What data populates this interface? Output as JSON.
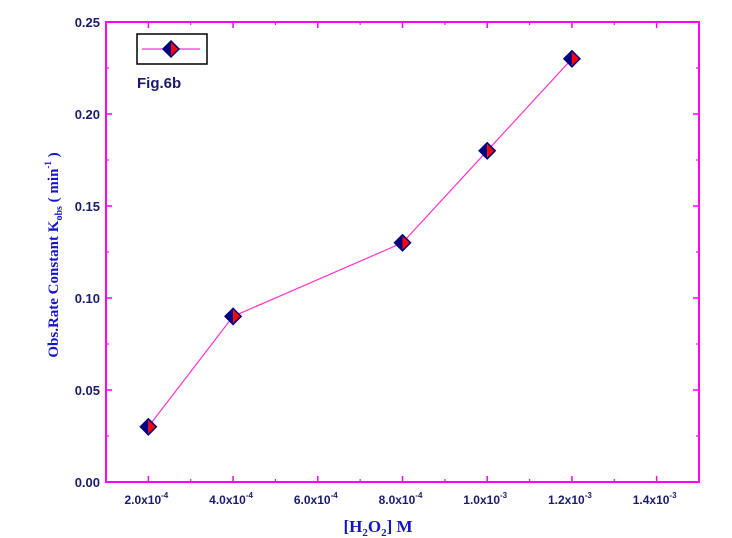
{
  "chart_data": {
    "type": "line",
    "figure_label": "Fig.6b",
    "x_axis_title": {
      "text": "[H",
      "sub1": "2",
      "mid": "O",
      "sub2": "2",
      "end": "]  M"
    },
    "y_axis_title": {
      "main": "Obs.Rate Constant  K",
      "sub": "obs",
      "unit": " ( min",
      "sup": "-1",
      "close": " )"
    },
    "x_tick_labels": [
      {
        "base": "2.0x10",
        "exp": "-4"
      },
      {
        "base": "4.0x10",
        "exp": "-4"
      },
      {
        "base": "6.0x10",
        "exp": "-4"
      },
      {
        "base": "8.0x10",
        "exp": "-4"
      },
      {
        "base": "1.0x10",
        "exp": "-3"
      },
      {
        "base": "1.2x10",
        "exp": "-3"
      },
      {
        "base": "1.4x10",
        "exp": "-3"
      }
    ],
    "x_ticks": [
      0.0002,
      0.0004,
      0.0006,
      0.0008,
      0.001,
      0.0012,
      0.0014
    ],
    "y_ticks": [
      0.0,
      0.05,
      0.1,
      0.15,
      0.2,
      0.25
    ],
    "y_tick_labels": [
      "0.00",
      "0.05",
      "0.10",
      "0.15",
      "0.20",
      "0.25"
    ],
    "xlim": [
      0.0001,
      0.0015
    ],
    "ylim": [
      0.0,
      0.25
    ],
    "series": [
      {
        "x": [
          0.0002,
          0.0004,
          0.0008,
          0.001,
          0.0012
        ],
        "y": [
          0.03,
          0.09,
          0.13,
          0.18,
          0.23
        ]
      }
    ],
    "colors": {
      "frame": "#ff00ff",
      "line": "#ff33cc",
      "marker_left": "#000080",
      "marker_right": "#ff0000",
      "text": "#1a1a6e",
      "axis_title": "#1414c8"
    }
  }
}
